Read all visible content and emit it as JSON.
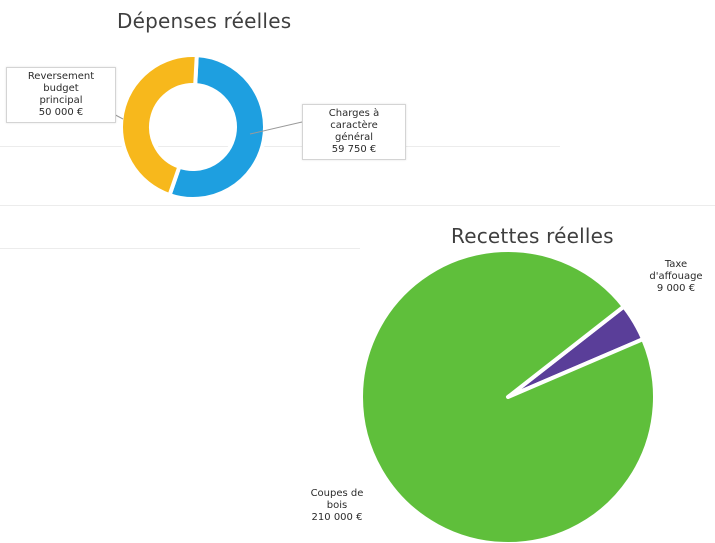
{
  "chart_data": [
    {
      "type": "pie",
      "title": "Dépenses réelles",
      "donut": true,
      "series": [
        {
          "label_lines": [
            "Charges à",
            "caractère",
            "général",
            "59 750 €"
          ],
          "value": 59750,
          "color": "#1e9fe0"
        },
        {
          "label_lines": [
            "Reversement",
            "budget",
            "principal",
            "50 000 €"
          ],
          "value": 50000,
          "color": "#f7b81c"
        }
      ]
    },
    {
      "type": "pie",
      "title": "Recettes réelles",
      "donut": false,
      "series": [
        {
          "label_lines": [
            "Taxe",
            "d'affouage",
            "9 000 €"
          ],
          "value": 9000,
          "color": "#5a3e99"
        },
        {
          "label_lines": [
            "Coupes de",
            "bois",
            "210 000 €"
          ],
          "value": 210000,
          "color": "#5fbf3b"
        }
      ]
    }
  ]
}
